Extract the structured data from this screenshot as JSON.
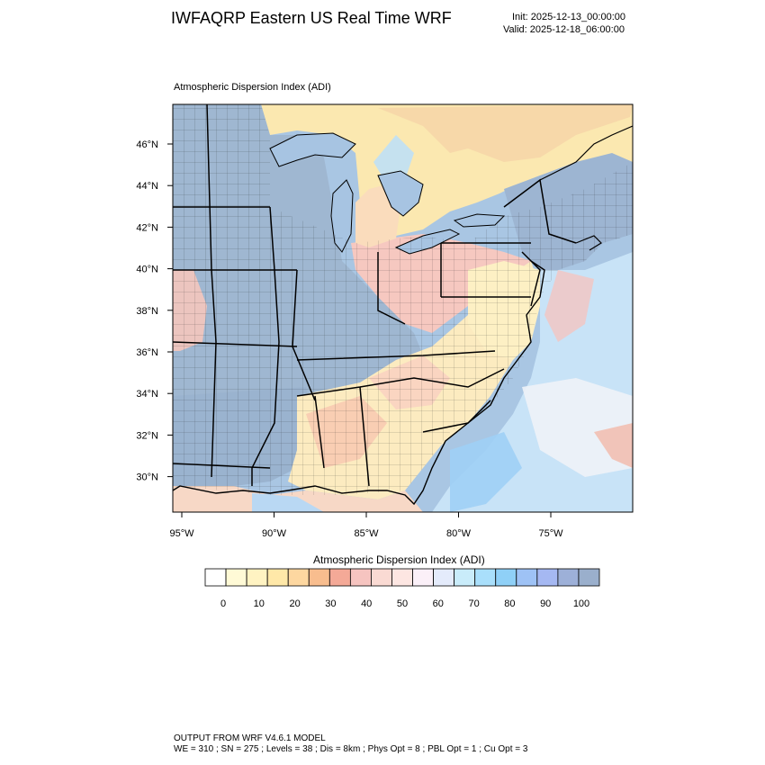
{
  "header": {
    "title": "IWFAQRP Eastern US Real Time WRF",
    "init": "Init: 2025-12-13_00:00:00",
    "valid": "Valid: 2025-12-18_06:00:00"
  },
  "map": {
    "subtitle": "Atmospheric Dispersion Index   (ADI)",
    "lat_labels": [
      "46°N",
      "44°N",
      "42°N",
      "40°N",
      "38°N",
      "36°N",
      "34°N",
      "32°N",
      "30°N"
    ],
    "lon_labels": [
      "95°W",
      "90°W",
      "85°W",
      "80°W",
      "75°W"
    ],
    "lat_values": [
      46,
      44,
      42,
      40,
      38,
      36,
      34,
      32,
      30
    ],
    "lon_values": [
      -95,
      -90,
      -85,
      -80,
      -75
    ]
  },
  "colorbar": {
    "title": "Atmospheric Dispersion Index  (ADI)",
    "tick_labels": [
      "0",
      "10",
      "20",
      "30",
      "40",
      "50",
      "60",
      "70",
      "80",
      "90",
      "100"
    ],
    "colors": [
      "#ffffff",
      "#fffad6",
      "#fff3c2",
      "#ffe8a8",
      "#fdd7a0",
      "#f8bd8e",
      "#f4a997",
      "#f6c4c0",
      "#fadad3",
      "#fde6e2",
      "#fbf0f8",
      "#e4ebfb",
      "#c9ecfa",
      "#a9dffb",
      "#8fd0f7",
      "#9ec2f5",
      "#a5b8f2",
      "#9db0d8",
      "#9aafcc"
    ]
  },
  "footer": {
    "line1": "OUTPUT FROM WRF V4.6.1 MODEL",
    "line2": "WE = 310 ; SN = 275 ; Levels = 38 ; Dis = 8km ; Phys Opt = 8 ; PBL Opt = 1 ; Cu Opt = 3"
  }
}
